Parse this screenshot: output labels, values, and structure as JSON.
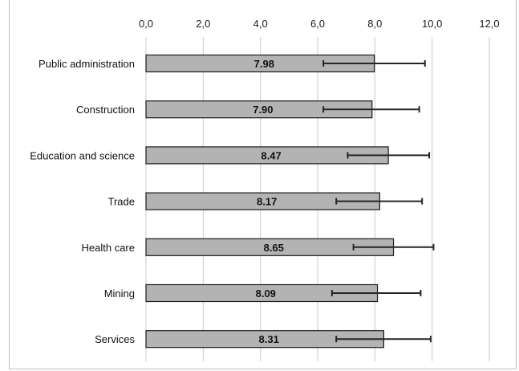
{
  "chart_data": {
    "type": "bar",
    "orientation": "horizontal",
    "title": "",
    "xlabel": "",
    "ylabel": "",
    "xlim": [
      0,
      12
    ],
    "x_ticks": [
      0,
      2,
      4,
      6,
      8,
      10,
      12
    ],
    "x_tick_labels": [
      "0,0",
      "2,0",
      "4,0",
      "6,0",
      "8,0",
      "10,0",
      "12,0"
    ],
    "x_axis_position": "top",
    "grid": true,
    "legend": "none",
    "categories": [
      "Public administration",
      "Construction",
      "Education and science",
      "Trade",
      "Health care",
      "Mining",
      "Services"
    ],
    "values": [
      7.98,
      7.9,
      8.47,
      8.17,
      8.65,
      8.09,
      8.31
    ],
    "value_labels": [
      "7.98",
      "7.90",
      "8.47",
      "8.17",
      "8.65",
      "8.09",
      "8.31"
    ],
    "error_low": [
      6.2,
      6.2,
      7.05,
      6.65,
      7.25,
      6.5,
      6.65
    ],
    "error_high": [
      9.75,
      9.55,
      9.9,
      9.65,
      10.05,
      9.6,
      9.95
    ],
    "colors": {
      "bar_fill": "#b3b3b3",
      "bar_stroke": "#1a1a1a",
      "grid": "#c8c8c8",
      "error_bar": "#262626"
    }
  }
}
